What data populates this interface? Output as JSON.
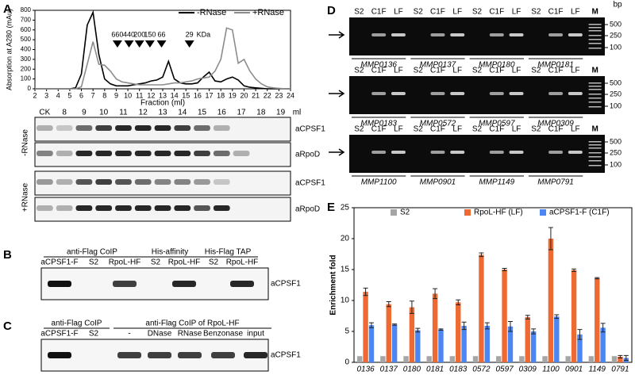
{
  "panels": [
    "A",
    "B",
    "C",
    "D",
    "E"
  ],
  "chart_data": [
    {
      "type": "line",
      "xlabel": "Fraction (ml)",
      "ylabel": "Absorption at A280 (mAu)",
      "x": [
        2,
        2.5,
        3,
        3.5,
        4,
        4.5,
        5,
        5.5,
        6,
        6.5,
        7,
        7.5,
        8,
        8.5,
        9,
        9.5,
        10,
        10.5,
        11,
        11.5,
        12,
        12.5,
        13,
        13.5,
        14,
        14.5,
        15,
        15.5,
        16,
        16.5,
        17,
        17.5,
        18,
        18.5,
        19,
        19.5,
        20,
        20.5,
        21,
        21.5,
        22,
        22.5,
        23,
        23.5,
        24
      ],
      "series": [
        {
          "name": "-RNase",
          "color": "#000000",
          "values": [
            0,
            0,
            0,
            0,
            0,
            0,
            0,
            10,
            150,
            650,
            780,
            350,
            100,
            50,
            30,
            30,
            30,
            40,
            50,
            60,
            80,
            90,
            120,
            280,
            100,
            60,
            50,
            50,
            60,
            120,
            170,
            80,
            70,
            100,
            120,
            90,
            30,
            15,
            10,
            5,
            0,
            0,
            0,
            0,
            0
          ]
        },
        {
          "name": "+RNase",
          "color": "#8c8c8c",
          "values": [
            0,
            0,
            0,
            0,
            0,
            0,
            0,
            0,
            20,
            250,
            480,
            250,
            240,
            180,
            100,
            70,
            60,
            50,
            40,
            40,
            40,
            40,
            40,
            50,
            60,
            60,
            70,
            80,
            100,
            110,
            120,
            180,
            300,
            620,
            600,
            260,
            300,
            180,
            100,
            50,
            20,
            10,
            5,
            0,
            0
          ]
        }
      ],
      "xlim": [
        2,
        24
      ],
      "ylim": [
        0,
        800
      ],
      "xticks": [
        2,
        3,
        4,
        5,
        6,
        7,
        8,
        9,
        10,
        11,
        12,
        13,
        14,
        15,
        16,
        17,
        18,
        19,
        20,
        21,
        22,
        23,
        24
      ],
      "yticks": [
        0,
        100,
        200,
        300,
        400,
        500,
        600,
        700,
        800
      ],
      "markers": [
        {
          "label": "660",
          "x": 9.1
        },
        {
          "label": "440",
          "x": 10.1
        },
        {
          "label": "200",
          "x": 11
        },
        {
          "label": "150",
          "x": 11.9
        },
        {
          "label": "66",
          "x": 12.9
        },
        {
          "label": "29",
          "x": 15.3
        }
      ],
      "marker_unit": "KDa"
    },
    {
      "type": "bar",
      "ylabel": "Enrichment fold",
      "categories": [
        "0136",
        "0137",
        "0180",
        "0181",
        "0183",
        "0572",
        "0597",
        "0309",
        "1100",
        "0901",
        "1149",
        "0791"
      ],
      "series": [
        {
          "name": "S2",
          "color": "#a6a6a6",
          "values": [
            1,
            1,
            1,
            1,
            1,
            1,
            1,
            1,
            1,
            1,
            1,
            1
          ]
        },
        {
          "name": "RpoL-HF (LF)",
          "color": "#ef6a32",
          "values": [
            11.4,
            9.4,
            8.9,
            11.1,
            9.7,
            17.4,
            15.0,
            7.3,
            20.0,
            14.9,
            13.6,
            0.9
          ],
          "errors": [
            0.6,
            0.4,
            1.0,
            0.8,
            0.4,
            0.3,
            0.2,
            0.3,
            1.8,
            0.2,
            0.1,
            0.2
          ]
        },
        {
          "name": "aCPSF1-F (C1F)",
          "color": "#4b86f2",
          "values": [
            6.0,
            6.1,
            5.2,
            5.3,
            5.9,
            5.9,
            5.8,
            5.0,
            7.4,
            4.5,
            5.6,
            0.7
          ],
          "errors": [
            0.4,
            0.1,
            0.3,
            0.1,
            0.6,
            0.5,
            0.8,
            0.4,
            0.3,
            0.8,
            0.7,
            0.4
          ]
        }
      ],
      "ylim": [
        0,
        25
      ],
      "yticks": [
        0,
        5,
        10,
        15,
        20,
        25
      ]
    }
  ],
  "gel_a": {
    "lanes": [
      "CK",
      "8",
      "9",
      "10",
      "11",
      "12",
      "13",
      "14",
      "15",
      "16",
      "17",
      "18",
      "19"
    ],
    "unit": "ml",
    "conditions": [
      "-RNase",
      "+RNase"
    ],
    "antibodies": [
      "aCPSF1",
      "aRpoD",
      "aCPSF1",
      "aRpoD"
    ]
  },
  "gel_b": {
    "groups": [
      {
        "title": "anti-Flag CoIP",
        "lanes": [
          "aCPSF1-F",
          "S2",
          "RpoL-HF"
        ]
      },
      {
        "title": "His-affinity",
        "lanes": [
          "S2",
          "RpoL-HF"
        ]
      },
      {
        "title": "His-Flag TAP",
        "lanes": [
          "S2",
          "RpoL-HF"
        ]
      }
    ],
    "antibody": "aCPSF1"
  },
  "gel_c": {
    "groups": [
      {
        "title": "anti-Flag CoIP",
        "lanes": [
          "aCPSF1-F",
          "S2"
        ]
      },
      {
        "title": "anti-Flag CoIP of RpoL-HF",
        "lanes": [
          "-",
          "DNase",
          "RNase",
          "Benzonase",
          "input"
        ]
      }
    ],
    "antibody": "aCPSF1"
  },
  "gel_d": {
    "lanes": [
      "S2",
      "C1F",
      "LF"
    ],
    "marker": "M",
    "unit": "bp",
    "sizes": [
      "500",
      "250",
      "100"
    ],
    "rows": [
      [
        "MMP0136",
        "MMP0137",
        "MMP0180",
        "MMP0181"
      ],
      [
        "MMP0183",
        "MMP0572",
        "MMP0597",
        "MMP0309"
      ],
      [
        "MMP1100",
        "MMP0901",
        "MMP1149",
        "MMP0791"
      ]
    ]
  }
}
